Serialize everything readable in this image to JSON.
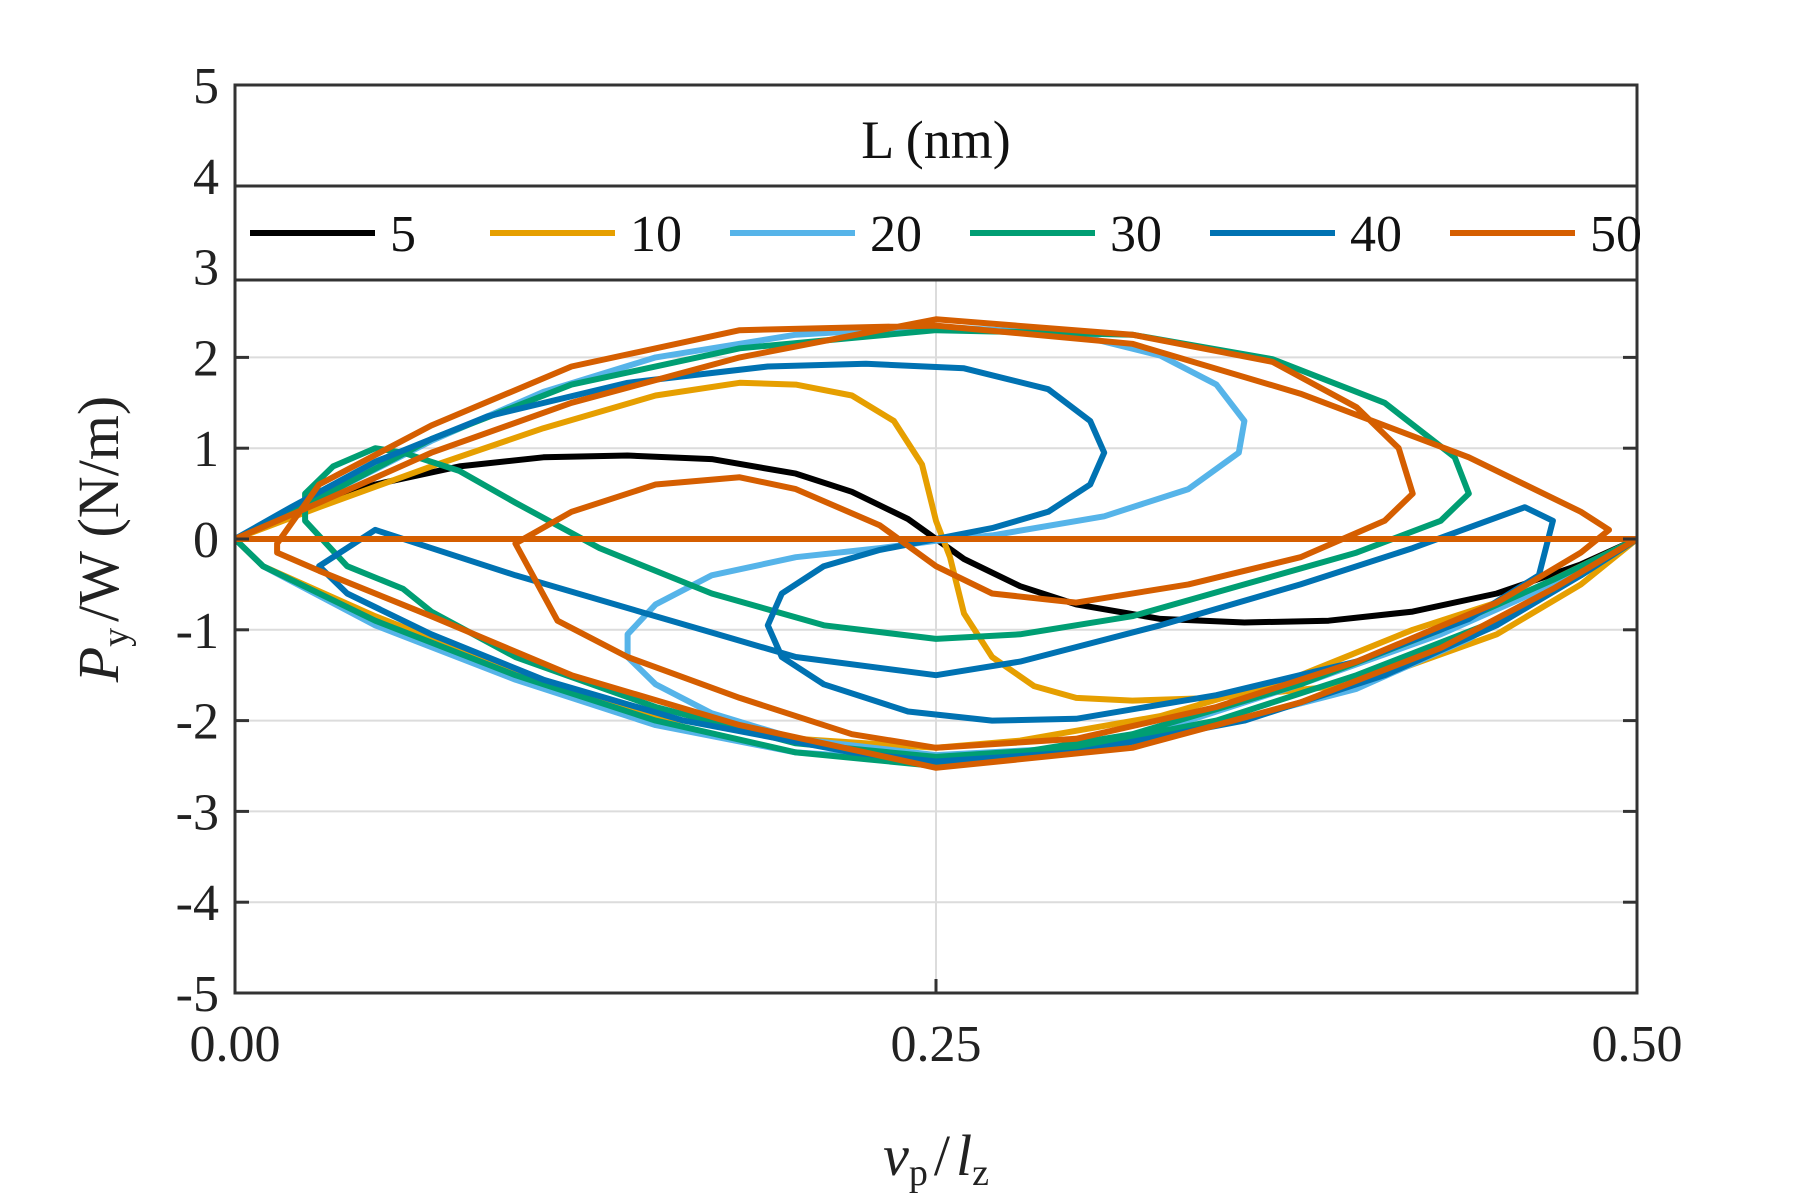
{
  "chart_data": {
    "type": "line",
    "title": "",
    "xlabel": "v_p / l_z",
    "xlabel_parts": {
      "main": "v",
      "main_sub": "p",
      "sep": "/",
      "denom": "l",
      "denom_sub": "z"
    },
    "ylabel": "P_y /W (N/m)",
    "ylabel_parts": {
      "main": "P",
      "sub": "y",
      "rest": "/W (N/m)"
    },
    "xlim": [
      0,
      0.5
    ],
    "ylim": [
      -5,
      5
    ],
    "xticks": [
      0,
      0.25,
      0.5
    ],
    "xtick_labels": [
      "0.00",
      "0.25",
      "0.50"
    ],
    "yticks": [
      -5,
      -4,
      -3,
      -2,
      -1,
      0,
      1,
      2,
      3,
      4,
      5
    ],
    "ytick_labels": [
      "-5",
      "-4",
      "-3",
      "-2",
      "-1",
      "0",
      "1",
      "2",
      "3",
      "4",
      "5"
    ],
    "grid": true,
    "legend": {
      "title": "L (nm)",
      "placement": "top",
      "entries": [
        "5",
        "10",
        "20",
        "30",
        "40",
        "50"
      ]
    },
    "series": [
      {
        "name": "5",
        "color": "#000000",
        "closed": false,
        "points": [
          [
            0,
            0
          ],
          [
            0.02,
            0.28
          ],
          [
            0.05,
            0.6
          ],
          [
            0.08,
            0.8
          ],
          [
            0.11,
            0.9
          ],
          [
            0.14,
            0.92
          ],
          [
            0.17,
            0.88
          ],
          [
            0.2,
            0.72
          ],
          [
            0.22,
            0.52
          ],
          [
            0.24,
            0.22
          ],
          [
            0.25,
            0
          ],
          [
            0.26,
            -0.22
          ],
          [
            0.28,
            -0.52
          ],
          [
            0.3,
            -0.72
          ],
          [
            0.33,
            -0.88
          ],
          [
            0.36,
            -0.92
          ],
          [
            0.39,
            -0.9
          ],
          [
            0.42,
            -0.8
          ],
          [
            0.45,
            -0.6
          ],
          [
            0.48,
            -0.28
          ],
          [
            0.5,
            0
          ]
        ]
      },
      {
        "name": "10",
        "color": "#e69f00",
        "closed": true,
        "points": [
          [
            0,
            0
          ],
          [
            0.03,
            0.35
          ],
          [
            0.07,
            0.8
          ],
          [
            0.11,
            1.22
          ],
          [
            0.15,
            1.58
          ],
          [
            0.18,
            1.72
          ],
          [
            0.2,
            1.7
          ],
          [
            0.22,
            1.58
          ],
          [
            0.235,
            1.3
          ],
          [
            0.245,
            0.82
          ],
          [
            0.25,
            0.2
          ],
          [
            0.255,
            -0.2
          ],
          [
            0.26,
            -0.82
          ],
          [
            0.27,
            -1.3
          ],
          [
            0.285,
            -1.62
          ],
          [
            0.3,
            -1.75
          ],
          [
            0.32,
            -1.78
          ],
          [
            0.35,
            -1.75
          ],
          [
            0.4,
            -1.6
          ],
          [
            0.45,
            -1.05
          ],
          [
            0.48,
            -0.5
          ],
          [
            0.5,
            0
          ],
          [
            0.46,
            -0.6
          ],
          [
            0.42,
            -1.0
          ],
          [
            0.38,
            -1.5
          ],
          [
            0.33,
            -1.95
          ],
          [
            0.28,
            -2.22
          ],
          [
            0.25,
            -2.3
          ],
          [
            0.2,
            -2.2
          ],
          [
            0.15,
            -1.95
          ],
          [
            0.1,
            -1.45
          ],
          [
            0.05,
            -0.85
          ],
          [
            0.01,
            -0.3
          ],
          [
            0,
            0
          ]
        ]
      },
      {
        "name": "20",
        "color": "#56b4e9",
        "closed": true,
        "points": [
          [
            0,
            0
          ],
          [
            0.03,
            0.45
          ],
          [
            0.07,
            1.08
          ],
          [
            0.11,
            1.62
          ],
          [
            0.15,
            2.0
          ],
          [
            0.2,
            2.25
          ],
          [
            0.25,
            2.34
          ],
          [
            0.3,
            2.25
          ],
          [
            0.33,
            2.02
          ],
          [
            0.35,
            1.7
          ],
          [
            0.36,
            1.3
          ],
          [
            0.358,
            0.95
          ],
          [
            0.34,
            0.55
          ],
          [
            0.31,
            0.25
          ],
          [
            0.27,
            0.04
          ],
          [
            0.25,
            -0.02
          ],
          [
            0.23,
            -0.1
          ],
          [
            0.2,
            -0.2
          ],
          [
            0.17,
            -0.4
          ],
          [
            0.15,
            -0.72
          ],
          [
            0.14,
            -1.05
          ],
          [
            0.14,
            -1.3
          ],
          [
            0.15,
            -1.6
          ],
          [
            0.17,
            -1.92
          ],
          [
            0.2,
            -2.2
          ],
          [
            0.25,
            -2.38
          ],
          [
            0.3,
            -2.3
          ],
          [
            0.35,
            -2.05
          ],
          [
            0.4,
            -1.65
          ],
          [
            0.44,
            -1.1
          ],
          [
            0.47,
            -0.55
          ],
          [
            0.5,
            0
          ],
          [
            0.47,
            -0.5
          ],
          [
            0.43,
            -1.05
          ],
          [
            0.38,
            -1.6
          ],
          [
            0.33,
            -2.1
          ],
          [
            0.28,
            -2.38
          ],
          [
            0.25,
            -2.45
          ],
          [
            0.2,
            -2.35
          ],
          [
            0.15,
            -2.05
          ],
          [
            0.1,
            -1.55
          ],
          [
            0.05,
            -0.95
          ],
          [
            0.01,
            -0.3
          ],
          [
            0,
            0
          ]
        ]
      },
      {
        "name": "30",
        "color": "#009e73",
        "closed": true,
        "points": [
          [
            0,
            0
          ],
          [
            0.03,
            0.45
          ],
          [
            0.07,
            1.1
          ],
          [
            0.12,
            1.7
          ],
          [
            0.18,
            2.1
          ],
          [
            0.25,
            2.3
          ],
          [
            0.32,
            2.25
          ],
          [
            0.37,
            1.98
          ],
          [
            0.41,
            1.5
          ],
          [
            0.435,
            0.9
          ],
          [
            0.44,
            0.5
          ],
          [
            0.43,
            0.2
          ],
          [
            0.4,
            -0.15
          ],
          [
            0.36,
            -0.5
          ],
          [
            0.32,
            -0.85
          ],
          [
            0.28,
            -1.05
          ],
          [
            0.25,
            -1.1
          ],
          [
            0.21,
            -0.95
          ],
          [
            0.17,
            -0.6
          ],
          [
            0.13,
            -0.1
          ],
          [
            0.1,
            0.4
          ],
          [
            0.08,
            0.75
          ],
          [
            0.06,
            0.95
          ],
          [
            0.05,
            1.0
          ],
          [
            0.035,
            0.8
          ],
          [
            0.025,
            0.5
          ],
          [
            0.025,
            0.2
          ],
          [
            0.04,
            -0.3
          ],
          [
            0.06,
            -0.55
          ],
          [
            0.07,
            -0.8
          ],
          [
            0.1,
            -1.3
          ],
          [
            0.15,
            -1.85
          ],
          [
            0.2,
            -2.25
          ],
          [
            0.25,
            -2.4
          ],
          [
            0.3,
            -2.3
          ],
          [
            0.35,
            -2.0
          ],
          [
            0.4,
            -1.5
          ],
          [
            0.45,
            -0.9
          ],
          [
            0.48,
            -0.4
          ],
          [
            0.5,
            0
          ],
          [
            0.47,
            -0.45
          ],
          [
            0.43,
            -1.0
          ],
          [
            0.38,
            -1.6
          ],
          [
            0.32,
            -2.15
          ],
          [
            0.25,
            -2.5
          ],
          [
            0.2,
            -2.35
          ],
          [
            0.15,
            -2.0
          ],
          [
            0.1,
            -1.5
          ],
          [
            0.05,
            -0.9
          ],
          [
            0.01,
            -0.3
          ],
          [
            0,
            0
          ]
        ]
      },
      {
        "name": "40",
        "color": "#0072b2",
        "closed": true,
        "points": [
          [
            0,
            0
          ],
          [
            0.02,
            0.35
          ],
          [
            0.05,
            0.85
          ],
          [
            0.09,
            1.35
          ],
          [
            0.14,
            1.72
          ],
          [
            0.19,
            1.9
          ],
          [
            0.225,
            1.93
          ],
          [
            0.26,
            1.88
          ],
          [
            0.29,
            1.65
          ],
          [
            0.305,
            1.3
          ],
          [
            0.31,
            0.95
          ],
          [
            0.305,
            0.6
          ],
          [
            0.29,
            0.3
          ],
          [
            0.27,
            0.12
          ],
          [
            0.25,
            0
          ],
          [
            0.23,
            -0.12
          ],
          [
            0.21,
            -0.3
          ],
          [
            0.195,
            -0.6
          ],
          [
            0.19,
            -0.95
          ],
          [
            0.195,
            -1.3
          ],
          [
            0.21,
            -1.6
          ],
          [
            0.24,
            -1.9
          ],
          [
            0.27,
            -2.0
          ],
          [
            0.3,
            -1.98
          ],
          [
            0.35,
            -1.72
          ],
          [
            0.4,
            -1.35
          ],
          [
            0.44,
            -0.88
          ],
          [
            0.465,
            -0.4
          ],
          [
            0.47,
            0.2
          ],
          [
            0.46,
            0.35
          ],
          [
            0.42,
            -0.1
          ],
          [
            0.38,
            -0.5
          ],
          [
            0.33,
            -0.95
          ],
          [
            0.28,
            -1.35
          ],
          [
            0.25,
            -1.5
          ],
          [
            0.2,
            -1.3
          ],
          [
            0.15,
            -0.85
          ],
          [
            0.1,
            -0.4
          ],
          [
            0.05,
            0.1
          ],
          [
            0.03,
            -0.3
          ],
          [
            0.04,
            -0.6
          ],
          [
            0.07,
            -1.05
          ],
          [
            0.11,
            -1.55
          ],
          [
            0.16,
            -2.0
          ],
          [
            0.22,
            -2.35
          ],
          [
            0.25,
            -2.45
          ],
          [
            0.3,
            -2.35
          ],
          [
            0.36,
            -2.0
          ],
          [
            0.41,
            -1.5
          ],
          [
            0.45,
            -0.95
          ],
          [
            0.48,
            -0.4
          ],
          [
            0.5,
            0
          ]
        ]
      },
      {
        "name": "50",
        "color": "#d55e00",
        "closed": true,
        "points": [
          [
            0,
            0
          ],
          [
            0.03,
            0.4
          ],
          [
            0.07,
            0.95
          ],
          [
            0.12,
            1.5
          ],
          [
            0.18,
            2.0
          ],
          [
            0.25,
            2.42
          ],
          [
            0.32,
            2.25
          ],
          [
            0.37,
            1.95
          ],
          [
            0.4,
            1.45
          ],
          [
            0.415,
            1.0
          ],
          [
            0.42,
            0.5
          ],
          [
            0.41,
            0.2
          ],
          [
            0.38,
            -0.2
          ],
          [
            0.34,
            -0.5
          ],
          [
            0.3,
            -0.7
          ],
          [
            0.27,
            -0.6
          ],
          [
            0.25,
            -0.3
          ],
          [
            0.23,
            0.15
          ],
          [
            0.2,
            0.55
          ],
          [
            0.18,
            0.68
          ],
          [
            0.15,
            0.6
          ],
          [
            0.12,
            0.3
          ],
          [
            0.1,
            -0.05
          ],
          [
            0.115,
            -0.9
          ],
          [
            0.14,
            -1.3
          ],
          [
            0.18,
            -1.75
          ],
          [
            0.22,
            -2.15
          ],
          [
            0.25,
            -2.3
          ],
          [
            0.3,
            -2.2
          ],
          [
            0.35,
            -1.85
          ],
          [
            0.4,
            -1.35
          ],
          [
            0.45,
            -0.7
          ],
          [
            0.48,
            -0.15
          ],
          [
            0.49,
            0.1
          ],
          [
            0.48,
            0.3
          ],
          [
            0.44,
            0.9
          ],
          [
            0.38,
            1.6
          ],
          [
            0.32,
            2.15
          ],
          [
            0.25,
            2.35
          ],
          [
            0.18,
            2.3
          ],
          [
            0.12,
            1.9
          ],
          [
            0.07,
            1.25
          ],
          [
            0.03,
            0.6
          ],
          [
            0.015,
            -0.05
          ],
          [
            0.015,
            -0.15
          ],
          [
            0.03,
            -0.35
          ],
          [
            0.07,
            -0.85
          ],
          [
            0.12,
            -1.5
          ],
          [
            0.18,
            -2.05
          ],
          [
            0.25,
            -2.52
          ],
          [
            0.32,
            -2.3
          ],
          [
            0.38,
            -1.8
          ],
          [
            0.43,
            -1.2
          ],
          [
            0.47,
            -0.55
          ],
          [
            0.5,
            0
          ]
        ]
      }
    ]
  }
}
